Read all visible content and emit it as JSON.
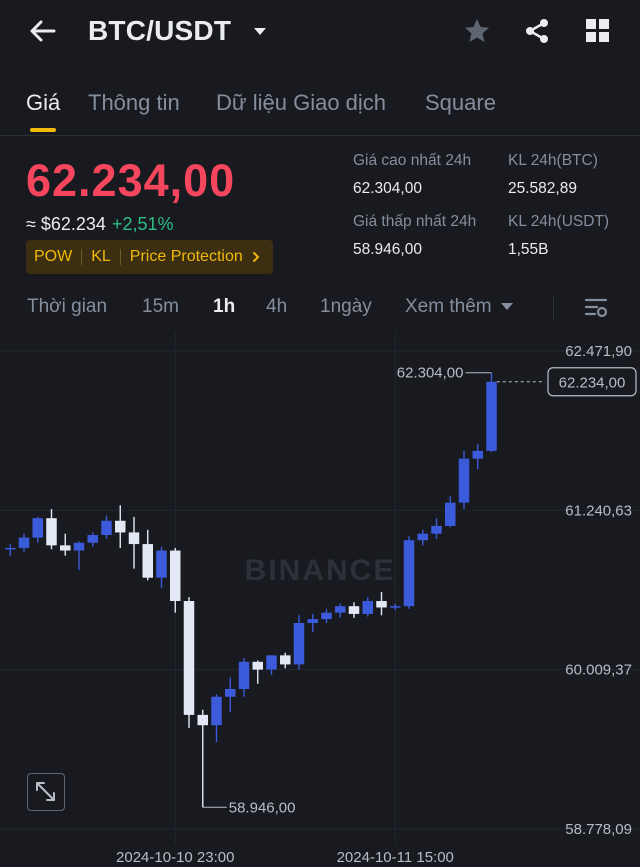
{
  "header": {
    "pair": "BTC/USDT",
    "icons": [
      "back-arrow-icon",
      "dropdown-caret-icon",
      "star-icon",
      "share-icon",
      "grid-icon"
    ]
  },
  "tabs": [
    {
      "label": "Giá",
      "active": true
    },
    {
      "label": "Thông tin",
      "active": false
    },
    {
      "label": "Dữ liệu Giao dịch",
      "active": false
    },
    {
      "label": "Square",
      "active": false
    }
  ],
  "ticker": {
    "last_price": "62.234,00",
    "usd_equiv": "≈ $62.234",
    "change_pct": "+2,51%",
    "tags": [
      "POW",
      "KL",
      "Price Protection"
    ],
    "stats": {
      "high_label": "Giá cao nhất 24h",
      "high_value": "62.304,00",
      "low_label": "Giá thấp nhất 24h",
      "low_value": "58.946,00",
      "vol_btc_label": "KL 24h(BTC)",
      "vol_btc_value": "25.582,89",
      "vol_usdt_label": "KL 24h(USDT)",
      "vol_usdt_value": "1,55B"
    },
    "colors": {
      "down": "#f6465d",
      "up": "#2ebd85",
      "accent": "#f0b90b"
    }
  },
  "intervals": {
    "items": [
      "Thời gian",
      "15m",
      "1h",
      "4h",
      "1ngày",
      "Xem thêm"
    ],
    "active": "1h",
    "settings_icon": "chart-settings-icon"
  },
  "chart_data": {
    "type": "candlestick",
    "interval": "1h",
    "price_axis_ticks": [
      "62.471,90",
      "61.240,63",
      "60.009,37",
      "58.778,09"
    ],
    "time_axis_ticks": [
      "2024-10-10 23:00",
      "2024-10-11 15:00"
    ],
    "last_price_label": "62.234,00",
    "high_marker": "62.304,00",
    "low_marker": "58.946,00",
    "watermark": "BINANCE",
    "ylim": [
      58778.09,
      62471.9
    ],
    "colors": {
      "up": "#3b5bdb",
      "down": "#e2e8f4"
    },
    "candles": [
      {
        "o": 60940,
        "h": 60980,
        "l": 60890,
        "c": 60950
      },
      {
        "o": 60950,
        "h": 61060,
        "l": 60920,
        "c": 61030
      },
      {
        "o": 61030,
        "h": 61190,
        "l": 60990,
        "c": 61180
      },
      {
        "o": 61180,
        "h": 61250,
        "l": 60940,
        "c": 60970
      },
      {
        "o": 60970,
        "h": 61060,
        "l": 60890,
        "c": 60930
      },
      {
        "o": 60930,
        "h": 61000,
        "l": 60780,
        "c": 60990
      },
      {
        "o": 60990,
        "h": 61070,
        "l": 60960,
        "c": 61050
      },
      {
        "o": 61050,
        "h": 61200,
        "l": 61020,
        "c": 61160
      },
      {
        "o": 61160,
        "h": 61280,
        "l": 60950,
        "c": 61070
      },
      {
        "o": 61070,
        "h": 61190,
        "l": 60790,
        "c": 60980
      },
      {
        "o": 60980,
        "h": 61090,
        "l": 60700,
        "c": 60720
      },
      {
        "o": 60720,
        "h": 60960,
        "l": 60640,
        "c": 60930
      },
      {
        "o": 60930,
        "h": 60950,
        "l": 60450,
        "c": 60540
      },
      {
        "o": 60540,
        "h": 60570,
        "l": 59560,
        "c": 59660
      },
      {
        "o": 59660,
        "h": 59700,
        "l": 58946,
        "c": 59580
      },
      {
        "o": 59580,
        "h": 59820,
        "l": 59450,
        "c": 59800
      },
      {
        "o": 59800,
        "h": 59950,
        "l": 59680,
        "c": 59860
      },
      {
        "o": 59860,
        "h": 60100,
        "l": 59800,
        "c": 60070
      },
      {
        "o": 60070,
        "h": 60080,
        "l": 59900,
        "c": 60010
      },
      {
        "o": 60010,
        "h": 60120,
        "l": 59970,
        "c": 60120
      },
      {
        "o": 60120,
        "h": 60140,
        "l": 60020,
        "c": 60050
      },
      {
        "o": 60050,
        "h": 60430,
        "l": 60010,
        "c": 60370
      },
      {
        "o": 60370,
        "h": 60440,
        "l": 60300,
        "c": 60400
      },
      {
        "o": 60400,
        "h": 60480,
        "l": 60370,
        "c": 60450
      },
      {
        "o": 60450,
        "h": 60520,
        "l": 60410,
        "c": 60500
      },
      {
        "o": 60500,
        "h": 60530,
        "l": 60410,
        "c": 60440
      },
      {
        "o": 60440,
        "h": 60570,
        "l": 60420,
        "c": 60540
      },
      {
        "o": 60540,
        "h": 60610,
        "l": 60430,
        "c": 60490
      },
      {
        "o": 60490,
        "h": 60520,
        "l": 60470,
        "c": 60500
      },
      {
        "o": 60500,
        "h": 61040,
        "l": 60480,
        "c": 61010
      },
      {
        "o": 61010,
        "h": 61090,
        "l": 60970,
        "c": 61060
      },
      {
        "o": 61060,
        "h": 61180,
        "l": 61020,
        "c": 61120
      },
      {
        "o": 61120,
        "h": 61350,
        "l": 61110,
        "c": 61300
      },
      {
        "o": 61300,
        "h": 61700,
        "l": 61250,
        "c": 61640
      },
      {
        "o": 61640,
        "h": 61750,
        "l": 61560,
        "c": 61700
      },
      {
        "o": 61700,
        "h": 62304,
        "l": 61690,
        "c": 62234
      }
    ]
  }
}
